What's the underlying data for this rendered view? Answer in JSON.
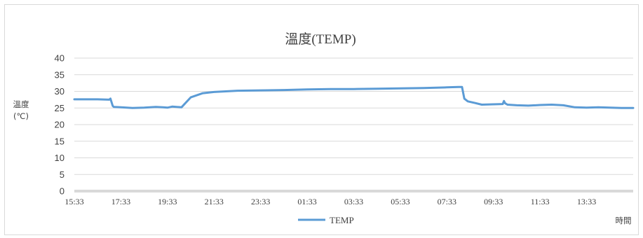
{
  "chart_data": {
    "type": "line",
    "title": "溫度(TEMP)",
    "ylabel": "溫度",
    "ylabel_unit": "(℃)",
    "xlabel": "時間",
    "ylim": [
      0,
      40
    ],
    "yticks": [
      0,
      5,
      10,
      15,
      20,
      25,
      30,
      35,
      40
    ],
    "xticks": [
      "15:33",
      "17:33",
      "19:33",
      "21:33",
      "23:33",
      "01:33",
      "03:33",
      "05:33",
      "07:33",
      "09:33",
      "11:33",
      "13:33"
    ],
    "grid": true,
    "legend_position": "bottom",
    "series": [
      {
        "name": "TEMP",
        "color": "#5b9bd5",
        "x_hours": [
          0,
          0.5,
          1.0,
          1.5,
          1.55,
          1.65,
          1.7,
          2.0,
          2.5,
          3.0,
          3.5,
          3.8,
          4.0,
          4.2,
          4.6,
          5.0,
          5.5,
          6.0,
          6.5,
          7.0,
          8.0,
          9.0,
          10.0,
          11.0,
          12.0,
          13.0,
          14.0,
          15.0,
          16.0,
          16.5,
          16.65,
          16.75,
          16.9,
          17.2,
          17.5,
          18.0,
          18.4,
          18.45,
          18.5,
          18.6,
          19.0,
          19.5,
          20.0,
          20.5,
          21.0,
          21.5,
          22.0,
          22.5,
          23.0,
          23.5,
          24.0
        ],
        "values": [
          27.6,
          27.6,
          27.6,
          27.5,
          27.8,
          25.6,
          25.3,
          25.2,
          25.0,
          25.1,
          25.3,
          25.2,
          25.1,
          25.4,
          25.2,
          28.2,
          29.4,
          29.8,
          30.0,
          30.2,
          30.3,
          30.4,
          30.6,
          30.7,
          30.7,
          30.8,
          30.9,
          31.0,
          31.2,
          31.3,
          31.3,
          27.8,
          27.0,
          26.5,
          26.0,
          26.1,
          26.2,
          27.1,
          26.4,
          26.0,
          25.8,
          25.7,
          25.9,
          26.0,
          25.8,
          25.2,
          25.1,
          25.2,
          25.1,
          25.0,
          25.0
        ]
      }
    ]
  }
}
